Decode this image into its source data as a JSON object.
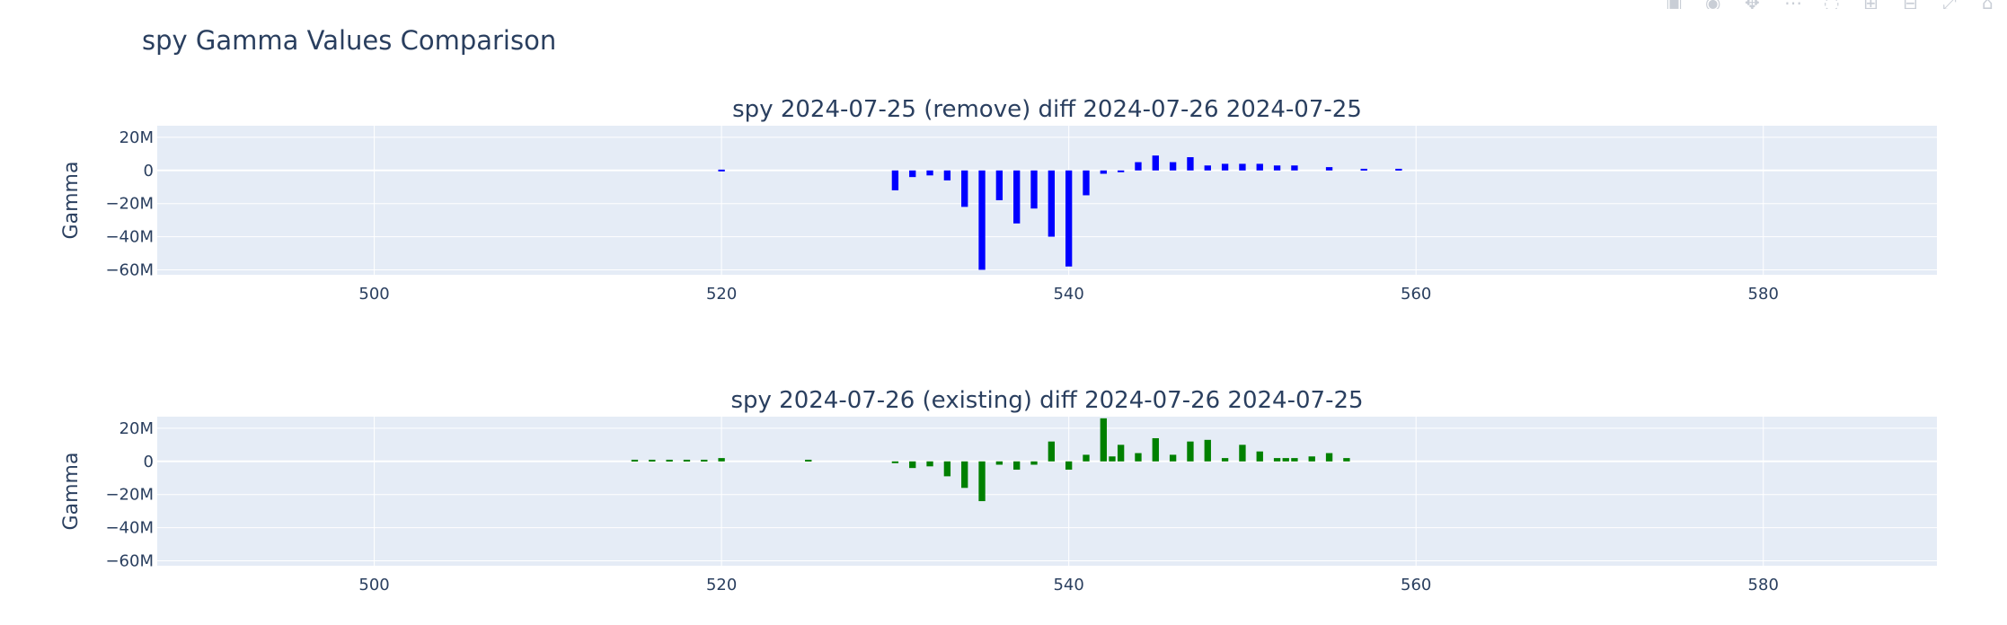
{
  "page": {
    "title": "spy Gamma Values Comparison"
  },
  "modebar": {
    "icons": [
      "camera-icon",
      "zoom-icon",
      "pan-icon",
      "box-select-icon",
      "lasso-icon",
      "zoom-in-icon",
      "zoom-out-icon",
      "autoscale-icon",
      "reset-axes-icon"
    ]
  },
  "colors": {
    "plot_bg": "#e5ecf6",
    "grid": "#ffffff",
    "panel1_bar": "#0000ff",
    "panel2_bar": "#008000",
    "text": "#2a3f5f"
  },
  "chart_data": [
    {
      "type": "bar",
      "title": "spy 2024-07-25 (remove) diff 2024-07-26 2024-07-25",
      "xlabel": "",
      "ylabel": "Gamma",
      "xlim": [
        487.5,
        590
      ],
      "ylim": [
        -63000000,
        27000000
      ],
      "x_ticks": [
        500,
        520,
        540,
        560,
        580
      ],
      "x_tick_labels": [
        "500",
        "520",
        "540",
        "560",
        "580"
      ],
      "y_ticks": [
        20000000,
        0,
        -20000000,
        -40000000,
        -60000000
      ],
      "y_tick_labels": [
        "20M",
        "0",
        "−20M",
        "−40M",
        "−60M"
      ],
      "grid": true,
      "color": "#0000ff",
      "x": [
        530,
        531,
        532,
        533,
        534,
        535,
        536,
        537,
        538,
        539,
        540,
        541,
        542,
        543,
        544,
        545,
        546,
        547,
        548,
        549,
        550,
        551,
        552,
        553,
        555,
        557,
        559,
        520
      ],
      "values": [
        -12000000,
        -4000000,
        -3000000,
        -6000000,
        -22000000,
        -60000000,
        -18000000,
        -32000000,
        -23000000,
        -40000000,
        -58000000,
        -15000000,
        -2000000,
        -1000000,
        5000000,
        9000000,
        5000000,
        8000000,
        3000000,
        4000000,
        4000000,
        4000000,
        3000000,
        3000000,
        2000000,
        1000000,
        1000000,
        500000
      ]
    },
    {
      "type": "bar",
      "title": "spy 2024-07-26 (existing) diff 2024-07-26 2024-07-25",
      "xlabel": "",
      "ylabel": "Gamma",
      "xlim": [
        487.5,
        590
      ],
      "ylim": [
        -63000000,
        27000000
      ],
      "x_ticks": [
        500,
        520,
        540,
        560,
        580
      ],
      "x_tick_labels": [
        "500",
        "520",
        "540",
        "560",
        "580"
      ],
      "y_ticks": [
        20000000,
        0,
        -20000000,
        -40000000,
        -60000000
      ],
      "y_tick_labels": [
        "20M",
        "0",
        "−20M",
        "−40M",
        "−60M"
      ],
      "grid": true,
      "color": "#008000",
      "x": [
        515,
        516,
        517,
        518,
        519,
        520,
        525,
        530,
        531,
        532,
        533,
        534,
        535,
        536,
        537,
        538,
        539,
        540,
        541,
        542,
        542.5,
        543,
        544,
        545,
        546,
        547,
        548,
        549,
        550,
        551,
        552,
        552.5,
        553,
        554,
        555,
        556
      ],
      "values": [
        1000000,
        1000000,
        1000000,
        1000000,
        1000000,
        2000000,
        1000000,
        -1000000,
        -4000000,
        -3000000,
        -9000000,
        -16000000,
        -24000000,
        -2000000,
        -5000000,
        -2000000,
        12000000,
        -5000000,
        4000000,
        26000000,
        3000000,
        10000000,
        5000000,
        14000000,
        4000000,
        12000000,
        13000000,
        2000000,
        10000000,
        6000000,
        2000000,
        2000000,
        2000000,
        3000000,
        5000000,
        2000000
      ]
    }
  ]
}
